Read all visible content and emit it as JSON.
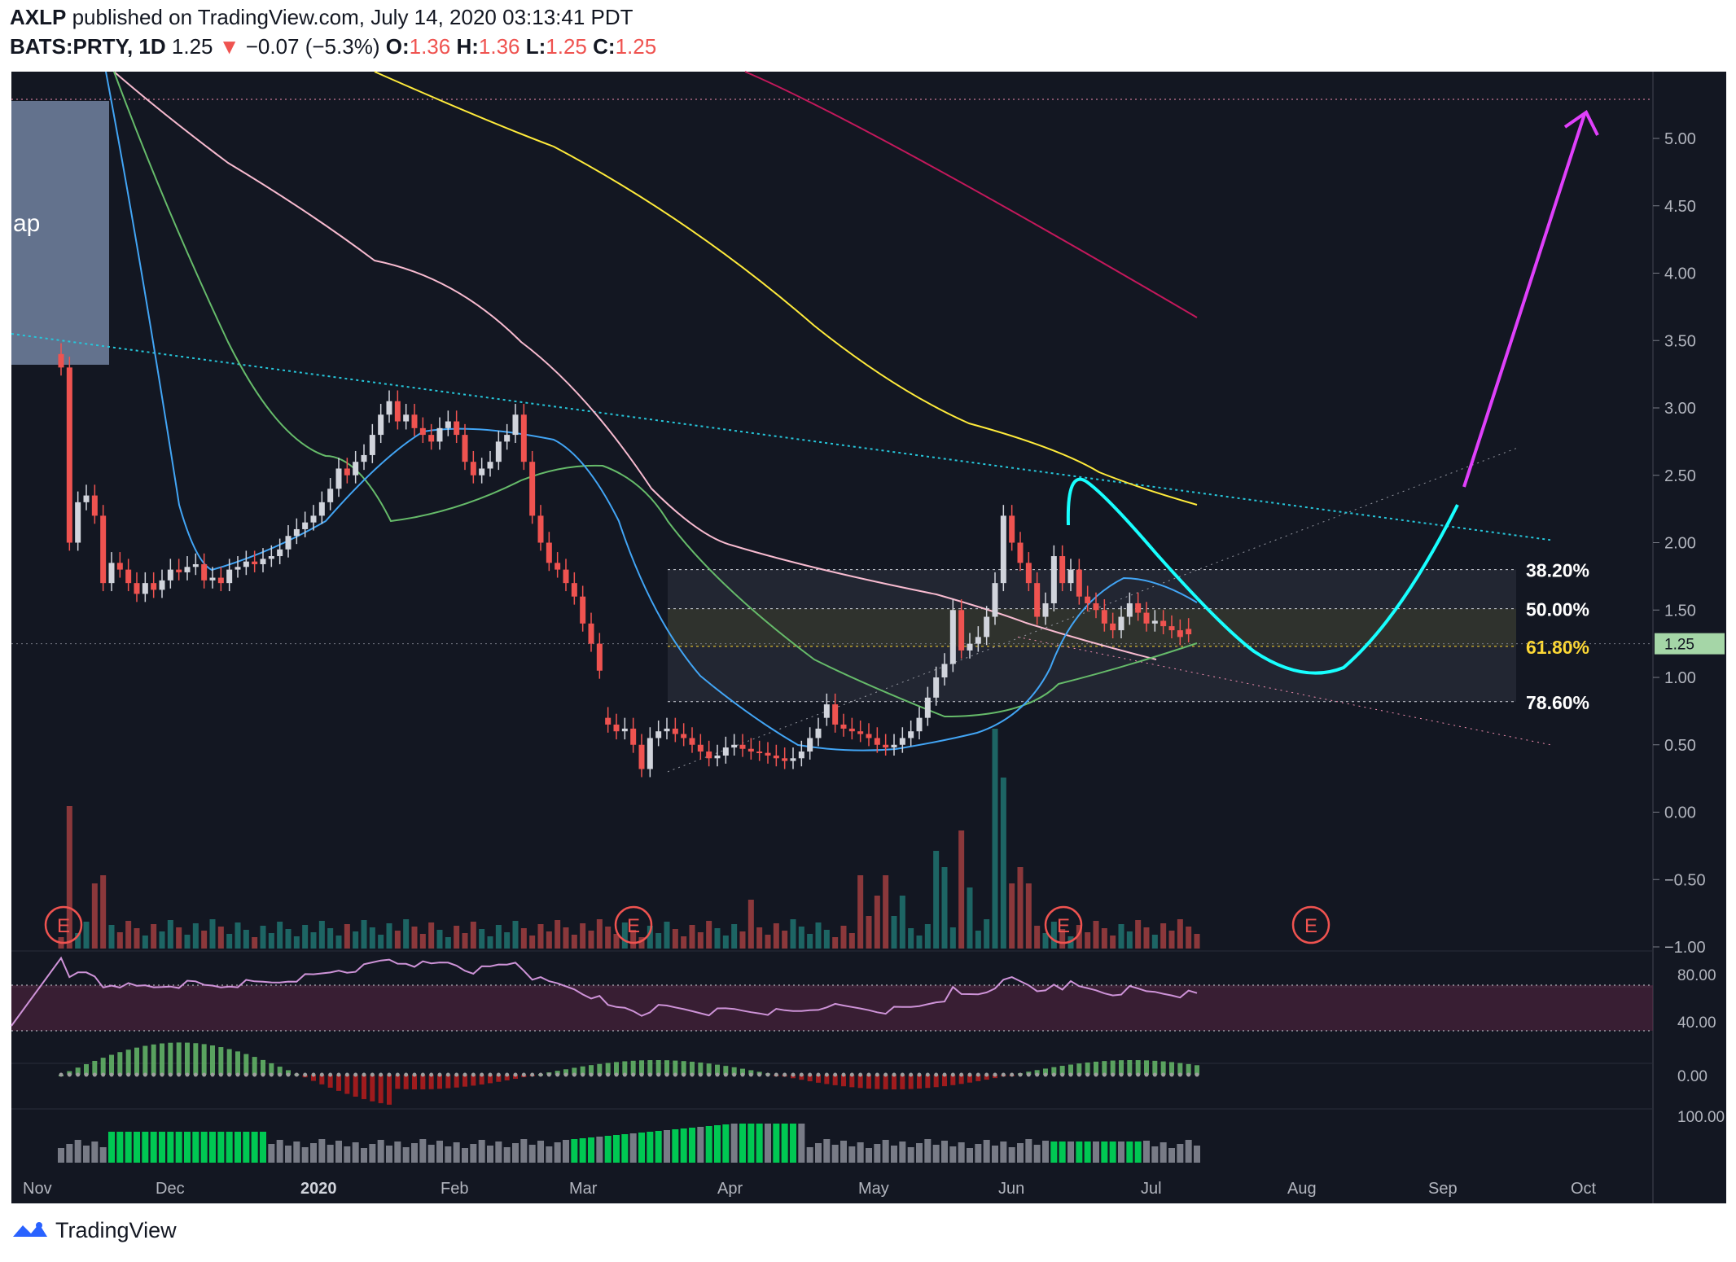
{
  "header": {
    "line1_user": "AXLP",
    "line1_rest": "published on TradingView.com, July 14, 2020 03:13:41 PDT",
    "symbol": "BATS:PRTY, 1D",
    "price": "1.25",
    "arrow": "▼",
    "change": "−0.07 (−5.3%)",
    "o_label": "O:",
    "o": "1.36",
    "h_label": "H:",
    "h": "1.36",
    "l_label": "L:",
    "l": "1.25",
    "c_label": "C:",
    "c": "1.25"
  },
  "footer": {
    "brand": "TradingView"
  },
  "colors": {
    "bg": "#131722",
    "up": "#d1d4dc",
    "down": "#ef5350",
    "ma_blue": "#42a5f5",
    "ma_green": "#66bb6a",
    "ma_pink": "#f8bbd0",
    "ma_yellow": "#ffeb3b",
    "ma_crimson": "#c2185b",
    "trend_cyan": "#26c6da",
    "curve_cyan": "#18ffff",
    "arrow_magenta": "#e040fb"
  },
  "chart_data": {
    "type": "candlestick",
    "y_ticks": [
      "5.00",
      "4.50",
      "4.00",
      "3.50",
      "3.00",
      "2.50",
      "2.00",
      "1.50",
      "1.00",
      "0.50",
      "0.00",
      "−0.50",
      "−1.00"
    ],
    "ylim": [
      -1.0,
      5.5
    ],
    "last_price_label": "1.25",
    "x_ticks": [
      "Nov",
      "Dec",
      "2020",
      "Feb",
      "Mar",
      "Apr",
      "May",
      "Jun",
      "Jul",
      "Aug",
      "Sep",
      "Oct"
    ],
    "fib_levels": [
      {
        "label": "38.20%",
        "value": 1.8
      },
      {
        "label": "50.00%",
        "value": 1.51
      },
      {
        "label": "61.80%",
        "value": 1.23
      },
      {
        "label": "78.60%",
        "value": 0.82
      }
    ],
    "left_box_label": "ap",
    "earnings_markers": [
      "E",
      "E",
      "E",
      "E"
    ],
    "close_series": [
      3.3,
      2.0,
      2.3,
      2.35,
      2.2,
      1.7,
      1.85,
      1.8,
      1.7,
      1.62,
      1.7,
      1.65,
      1.72,
      1.8,
      1.78,
      1.82,
      1.84,
      1.72,
      1.74,
      1.7,
      1.8,
      1.82,
      1.86,
      1.84,
      1.88,
      1.9,
      1.95,
      2.05,
      2.1,
      2.15,
      2.2,
      2.3,
      2.4,
      2.55,
      2.5,
      2.6,
      2.65,
      2.8,
      2.95,
      3.05,
      2.9,
      2.95,
      2.85,
      2.8,
      2.75,
      2.85,
      2.9,
      2.8,
      2.6,
      2.5,
      2.55,
      2.6,
      2.75,
      2.8,
      2.95,
      2.6,
      2.2,
      2.0,
      1.85,
      1.8,
      1.7,
      1.6,
      1.4,
      1.25,
      1.05,
      0.65,
      0.6,
      0.62,
      0.5,
      0.32,
      0.55,
      0.6,
      0.62,
      0.58,
      0.55,
      0.5,
      0.45,
      0.4,
      0.42,
      0.48,
      0.5,
      0.47,
      0.45,
      0.44,
      0.42,
      0.4,
      0.38,
      0.4,
      0.45,
      0.55,
      0.62,
      0.8,
      0.65,
      0.62,
      0.6,
      0.58,
      0.55,
      0.5,
      0.48,
      0.5,
      0.55,
      0.6,
      0.7,
      0.85,
      1.0,
      1.1,
      1.5,
      1.2,
      1.25,
      1.3,
      1.45,
      1.7,
      2.2,
      2.0,
      1.85,
      1.7,
      1.45,
      1.55,
      1.9,
      1.7,
      1.8,
      1.6,
      1.55,
      1.5,
      1.4,
      1.35,
      1.45,
      1.55,
      1.48,
      1.4,
      1.42,
      1.38,
      1.35,
      1.3,
      1.32,
      1.25
    ],
    "open_series": [
      3.4,
      3.3,
      2.0,
      2.3,
      2.35,
      2.2,
      1.7,
      1.85,
      1.8,
      1.7,
      1.62,
      1.7,
      1.65,
      1.72,
      1.8,
      1.78,
      1.82,
      1.84,
      1.72,
      1.74,
      1.7,
      1.8,
      1.82,
      1.86,
      1.84,
      1.88,
      1.9,
      1.95,
      2.05,
      2.1,
      2.15,
      2.2,
      2.3,
      2.4,
      2.55,
      2.5,
      2.6,
      2.65,
      2.8,
      2.95,
      3.05,
      2.9,
      2.95,
      2.85,
      2.8,
      2.75,
      2.85,
      2.9,
      2.8,
      2.6,
      2.5,
      2.55,
      2.6,
      2.75,
      2.8,
      2.95,
      2.6,
      2.2,
      2.0,
      1.85,
      1.8,
      1.7,
      1.6,
      1.4,
      1.25,
      0.7,
      0.65,
      0.6,
      0.62,
      0.5,
      0.32,
      0.55,
      0.6,
      0.62,
      0.58,
      0.55,
      0.5,
      0.45,
      0.4,
      0.42,
      0.48,
      0.5,
      0.47,
      0.45,
      0.44,
      0.42,
      0.4,
      0.38,
      0.4,
      0.45,
      0.55,
      0.7,
      0.8,
      0.65,
      0.62,
      0.6,
      0.58,
      0.55,
      0.5,
      0.48,
      0.5,
      0.55,
      0.6,
      0.7,
      0.85,
      1.0,
      1.1,
      1.5,
      1.2,
      1.25,
      1.3,
      1.45,
      1.7,
      2.2,
      2.0,
      1.85,
      1.7,
      1.45,
      1.55,
      1.9,
      1.7,
      1.8,
      1.6,
      1.55,
      1.5,
      1.4,
      1.35,
      1.45,
      1.55,
      1.48,
      1.4,
      1.42,
      1.38,
      1.35,
      1.36
    ],
    "rsi_ticks": [
      "80.00",
      "40.00"
    ],
    "macd_ticks": [
      "0.00"
    ],
    "bottom_ticks": [
      "100.00"
    ]
  }
}
